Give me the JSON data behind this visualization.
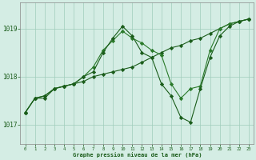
{
  "title": "Graphe pression niveau de la mer (hPa)",
  "bg_color": "#d4ede4",
  "grid_color": "#a0ccbb",
  "line_color1": "#1a5c1a",
  "line_color2": "#2a7a2a",
  "hours": [
    0,
    1,
    2,
    3,
    4,
    5,
    6,
    7,
    8,
    9,
    10,
    11,
    12,
    13,
    14,
    15,
    16,
    17,
    18,
    19,
    20,
    21,
    22,
    23
  ],
  "series1": [
    1017.25,
    1017.55,
    1017.55,
    1017.75,
    1017.8,
    1017.85,
    1017.9,
    1018.0,
    1018.05,
    1018.1,
    1018.15,
    1018.2,
    1018.3,
    1018.4,
    1018.5,
    1018.6,
    1018.65,
    1018.75,
    1018.8,
    1018.9,
    1019.0,
    1019.1,
    1019.15,
    1019.2
  ],
  "series2": [
    1017.25,
    1017.55,
    1017.6,
    1017.75,
    1017.8,
    1017.85,
    1018.0,
    1018.2,
    1018.55,
    1018.75,
    1018.95,
    1018.8,
    1018.7,
    1018.55,
    1018.45,
    1017.85,
    1017.55,
    1017.75,
    1017.8,
    1018.55,
    1019.0,
    1019.1,
    1019.15,
    1019.2
  ],
  "series3": [
    1017.25,
    1017.55,
    1017.6,
    1017.75,
    1017.8,
    1017.85,
    1018.0,
    1018.1,
    1018.5,
    1018.8,
    1019.05,
    1018.85,
    1018.5,
    1018.4,
    1017.85,
    1017.6,
    1017.15,
    1017.05,
    1017.75,
    1018.4,
    1018.85,
    1019.05,
    1019.15,
    1019.2
  ],
  "ylim": [
    1016.6,
    1019.55
  ],
  "yticks": [
    1017.0,
    1018.0,
    1019.0
  ],
  "xlim": [
    -0.5,
    23.5
  ]
}
